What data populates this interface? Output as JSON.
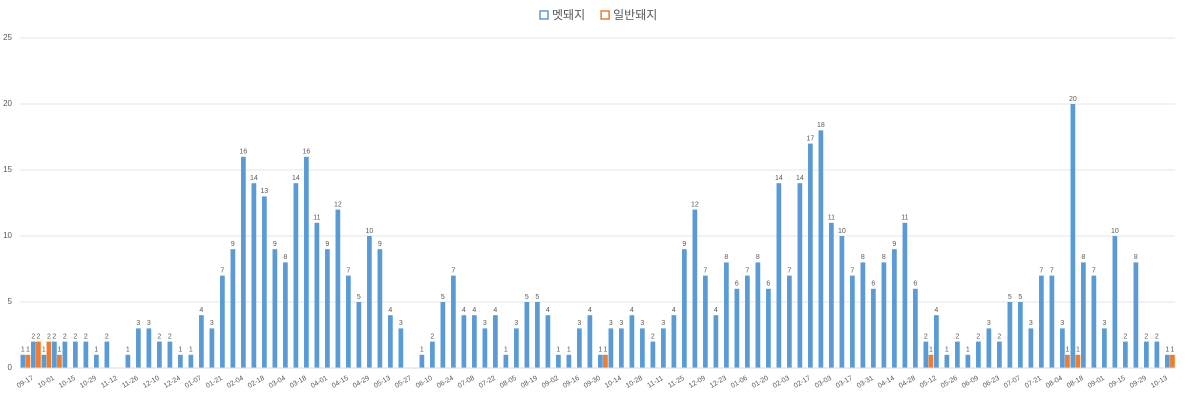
{
  "chart_data": {
    "type": "bar",
    "categories": [
      "09-17",
      null,
      "10-01",
      null,
      "10-15",
      null,
      "10-29",
      null,
      "11-12",
      null,
      "11-26",
      null,
      "12-10",
      null,
      "12-24",
      null,
      "01-07",
      null,
      "01-21",
      null,
      "02-04",
      null,
      "02-18",
      null,
      "03-04",
      null,
      "03-18",
      null,
      "04-01",
      null,
      "04-15",
      null,
      "04-29",
      null,
      "05-13",
      null,
      "05-27",
      null,
      "06-10",
      null,
      "06-24",
      null,
      "07-08",
      null,
      "07-22",
      null,
      "08-05",
      null,
      "08-19",
      null,
      "09-02",
      null,
      "09-16",
      null,
      "09-30",
      null,
      "10-14",
      null,
      "10-28",
      null,
      "11-11",
      null,
      "11-25",
      null,
      "12-09",
      null,
      "12-23",
      null,
      "01-06",
      null,
      "01-20",
      null,
      "02-03",
      null,
      "02-17",
      null,
      "03-03",
      null,
      "03-17",
      null,
      "03-31",
      null,
      "04-14",
      null,
      "04-28",
      null,
      "05-12",
      null,
      "05-26",
      null,
      "06-09",
      null,
      "06-23",
      null,
      "07-07",
      null,
      "07-21",
      null,
      "08-04",
      null,
      "08-18",
      null,
      "09-01",
      null,
      "09-15",
      null,
      "09-29",
      null,
      "10-13",
      null
    ],
    "series": [
      {
        "name": "멧돼지",
        "color": "#5b9bd5",
        "values": [
          1,
          2,
          1,
          2,
          2,
          2,
          2,
          1,
          2,
          null,
          1,
          3,
          3,
          2,
          2,
          1,
          1,
          4,
          3,
          7,
          9,
          16,
          14,
          13,
          9,
          8,
          14,
          16,
          11,
          9,
          12,
          7,
          5,
          10,
          9,
          4,
          3,
          null,
          1,
          2,
          5,
          7,
          4,
          4,
          3,
          4,
          1,
          3,
          5,
          5,
          4,
          1,
          1,
          3,
          4,
          1,
          3,
          3,
          4,
          3,
          2,
          3,
          4,
          9,
          12,
          7,
          4,
          8,
          6,
          7,
          8,
          6,
          14,
          7,
          14,
          17,
          18,
          11,
          10,
          7,
          8,
          6,
          8,
          9,
          11,
          6,
          2,
          4,
          1,
          2,
          1,
          2,
          3,
          2,
          5,
          5,
          3,
          7,
          7,
          3,
          20,
          8,
          7,
          3,
          10,
          2,
          8,
          2,
          2,
          1
        ]
      },
      {
        "name": "일반돼지",
        "color": "#ed7d31",
        "values": [
          1,
          2,
          2,
          1,
          null,
          null,
          null,
          null,
          null,
          null,
          null,
          null,
          null,
          null,
          null,
          null,
          null,
          null,
          null,
          null,
          null,
          null,
          null,
          null,
          null,
          null,
          null,
          null,
          null,
          null,
          null,
          null,
          null,
          null,
          null,
          null,
          null,
          null,
          null,
          null,
          null,
          null,
          null,
          null,
          null,
          null,
          null,
          null,
          null,
          null,
          null,
          null,
          null,
          null,
          null,
          1,
          null,
          null,
          null,
          null,
          null,
          null,
          null,
          null,
          null,
          null,
          null,
          null,
          null,
          null,
          null,
          null,
          null,
          null,
          null,
          null,
          null,
          null,
          null,
          null,
          null,
          null,
          null,
          null,
          null,
          null,
          1,
          null,
          null,
          null,
          null,
          null,
          null,
          null,
          null,
          null,
          null,
          null,
          null,
          1,
          1,
          null,
          null,
          null,
          null,
          null,
          null,
          null,
          null,
          1
        ]
      }
    ],
    "ylim": [
      0,
      25
    ],
    "yticks": [
      0,
      5,
      10,
      15,
      20,
      25
    ],
    "grid": true,
    "legend": "top"
  }
}
